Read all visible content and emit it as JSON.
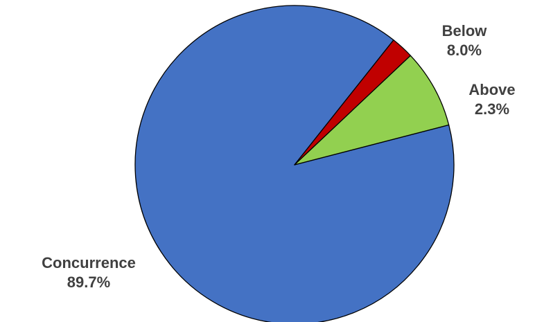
{
  "chart_data": {
    "type": "pie",
    "slices": [
      {
        "name": "Concurrence",
        "value": 89.7,
        "value_label": "89.7%",
        "color": "#4472C4"
      },
      {
        "name": "Above",
        "value": 2.3,
        "value_label": "2.3%",
        "color": "#C00000"
      },
      {
        "name": "Below",
        "value": 8.0,
        "value_label": "8.0%",
        "color": "#92D050"
      }
    ]
  }
}
